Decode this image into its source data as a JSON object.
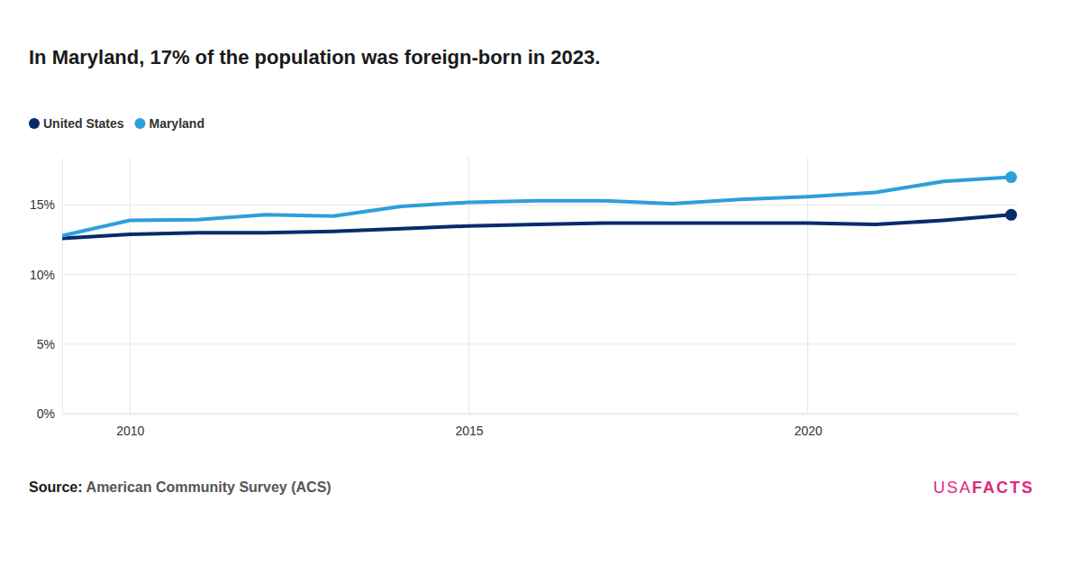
{
  "chart_data": {
    "type": "line",
    "title": "In Maryland, 17% of the population was foreign-born in 2023.",
    "source_label": "Source:",
    "source": "American Community Survey (ACS)",
    "branding": [
      "USA",
      "FACTS"
    ],
    "x": [
      2009,
      2010,
      2011,
      2012,
      2013,
      2014,
      2015,
      2016,
      2017,
      2018,
      2019,
      2020,
      2021,
      2022,
      2023
    ],
    "series": [
      {
        "name": "United States",
        "color": "#062c6e",
        "marker": "circle",
        "values": [
          12.6,
          12.9,
          13.0,
          13.0,
          13.1,
          13.3,
          13.5,
          13.6,
          13.7,
          13.7,
          13.7,
          13.7,
          13.6,
          13.9,
          14.3
        ]
      },
      {
        "name": "Maryland",
        "color": "#2d9fdb",
        "marker": "circle",
        "values": [
          12.8,
          13.9,
          13.95,
          14.3,
          14.2,
          14.9,
          15.2,
          15.3,
          15.3,
          15.1,
          15.4,
          15.6,
          15.9,
          16.7,
          17.0
        ]
      }
    ],
    "xlim": [
      2009,
      2023.1
    ],
    "xticks": [
      2010,
      2015,
      2020
    ],
    "ylim": [
      0,
      18.4
    ],
    "yticks": [
      {
        "value": 0,
        "label": "0%"
      },
      {
        "value": 5,
        "label": "5%"
      },
      {
        "value": 10,
        "label": "10%"
      },
      {
        "value": 15,
        "label": "15%"
      }
    ],
    "grid": true,
    "legend": "top-left"
  }
}
